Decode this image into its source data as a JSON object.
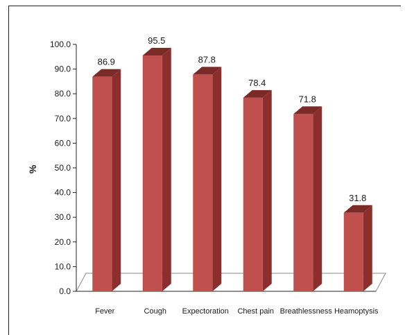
{
  "chart_data": {
    "type": "bar",
    "title": "",
    "xlabel": "",
    "ylabel": "%",
    "ylim": [
      0,
      100
    ],
    "yticks": [
      "0.0",
      "10.0",
      "20.0",
      "30.0",
      "40.0",
      "50.0",
      "60.0",
      "70.0",
      "80.0",
      "90.0",
      "100.0"
    ],
    "categories": [
      "Fever",
      "Cough",
      "Expectoration",
      "Chest pain",
      "Breathlessness",
      "Heamoptysis"
    ],
    "values": [
      86.9,
      95.5,
      87.8,
      78.4,
      71.8,
      31.8
    ],
    "data_labels": [
      "86.9",
      "95.5",
      "87.8",
      "78.4",
      "71.8",
      "31.8"
    ],
    "style": "3d-column",
    "grid": false,
    "colors": {
      "bar_front": "#c0504d",
      "bar_side": "#8c2e2b",
      "bar_top": "#7a2a27",
      "floor": "#ffffff"
    }
  }
}
